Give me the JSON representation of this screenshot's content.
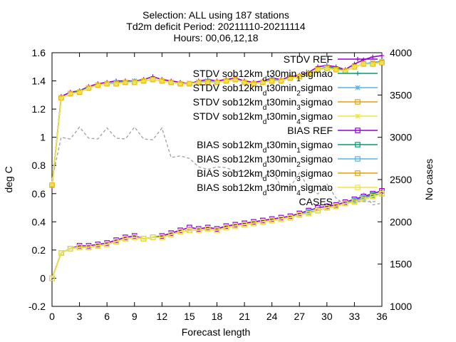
{
  "chart_data": {
    "type": "line",
    "title_lines": [
      "Selection: ALL using 187 stations",
      "Td2m deficit Period: 20211110-20211114",
      "Hours: 00,06,12,18"
    ],
    "xlabel": "Forecast length",
    "ylabel": "deg C",
    "y2label": "No cases",
    "xlim": [
      0,
      36
    ],
    "ylim": [
      -0.2,
      1.6
    ],
    "y2lim": [
      1000,
      4000
    ],
    "xticks": [
      0,
      3,
      6,
      9,
      12,
      15,
      18,
      21,
      24,
      27,
      30,
      33,
      36
    ],
    "yticks": [
      -0.2,
      0,
      0.2,
      0.4,
      0.6,
      0.8,
      1,
      1.2,
      1.4,
      1.6
    ],
    "y2ticks": [
      1000,
      1500,
      2000,
      2500,
      3000,
      3500,
      4000
    ],
    "legend_position": "top-right",
    "x": [
      0,
      1,
      2,
      3,
      4,
      5,
      6,
      7,
      8,
      9,
      10,
      11,
      12,
      13,
      14,
      15,
      16,
      17,
      18,
      19,
      20,
      21,
      22,
      23,
      24,
      25,
      26,
      27,
      28,
      29,
      30,
      31,
      32,
      33,
      34,
      35,
      36
    ],
    "series": [
      {
        "name": "STDV REF",
        "color": "#9400d3",
        "axis": "y1",
        "marker": "plus",
        "values": [
          0.65,
          1.29,
          1.32,
          1.33,
          1.36,
          1.38,
          1.39,
          1.4,
          1.4,
          1.4,
          1.41,
          1.43,
          1.41,
          1.4,
          1.39,
          1.38,
          1.4,
          1.41,
          1.4,
          1.41,
          1.42,
          1.4,
          1.39,
          1.4,
          1.42,
          1.41,
          1.43,
          1.44,
          1.46,
          1.5,
          1.51,
          1.5,
          1.48,
          1.52,
          1.55,
          1.57,
          1.58
        ]
      },
      {
        "name": "STDV sob12km_d t30min_1 sigmao",
        "color": "#009e73",
        "axis": "y1",
        "marker": "plus",
        "values": [
          0.66,
          1.28,
          1.31,
          1.33,
          1.35,
          1.37,
          1.38,
          1.39,
          1.39,
          1.4,
          1.4,
          1.41,
          1.4,
          1.39,
          1.38,
          1.38,
          1.39,
          1.4,
          1.39,
          1.4,
          1.41,
          1.39,
          1.38,
          1.39,
          1.41,
          1.4,
          1.42,
          1.43,
          1.45,
          1.48,
          1.5,
          1.49,
          1.47,
          1.5,
          1.52,
          1.53,
          1.54
        ]
      },
      {
        "name": "STDV sob12km_d t30min_2 sigmao",
        "color": "#56b4e9",
        "axis": "y1",
        "marker": "star",
        "values": [
          0.66,
          1.28,
          1.31,
          1.32,
          1.35,
          1.37,
          1.38,
          1.39,
          1.39,
          1.4,
          1.4,
          1.41,
          1.4,
          1.39,
          1.38,
          1.38,
          1.39,
          1.4,
          1.39,
          1.4,
          1.41,
          1.39,
          1.38,
          1.39,
          1.41,
          1.4,
          1.42,
          1.43,
          1.45,
          1.48,
          1.5,
          1.48,
          1.47,
          1.5,
          1.52,
          1.53,
          1.54
        ]
      },
      {
        "name": "STDV sob12km_d t30min_3 sigmao",
        "color": "#e69f00",
        "axis": "y1",
        "marker": "box",
        "values": [
          0.66,
          1.28,
          1.31,
          1.32,
          1.35,
          1.37,
          1.38,
          1.38,
          1.39,
          1.39,
          1.4,
          1.41,
          1.4,
          1.39,
          1.38,
          1.38,
          1.39,
          1.39,
          1.39,
          1.4,
          1.41,
          1.39,
          1.38,
          1.39,
          1.4,
          1.4,
          1.42,
          1.43,
          1.45,
          1.48,
          1.49,
          1.48,
          1.47,
          1.5,
          1.52,
          1.52,
          1.53
        ]
      },
      {
        "name": "STDV sob12km_d t30min_4 sigmao",
        "color": "#f0e442",
        "axis": "y1",
        "marker": "star",
        "values": [
          0.66,
          1.28,
          1.31,
          1.32,
          1.35,
          1.37,
          1.38,
          1.38,
          1.39,
          1.39,
          1.4,
          1.41,
          1.4,
          1.39,
          1.38,
          1.38,
          1.39,
          1.39,
          1.39,
          1.4,
          1.41,
          1.39,
          1.38,
          1.39,
          1.4,
          1.4,
          1.42,
          1.43,
          1.45,
          1.48,
          1.49,
          1.48,
          1.47,
          1.5,
          1.52,
          1.52,
          1.53
        ]
      },
      {
        "name": "BIAS REF",
        "color": "#9400d3",
        "axis": "y1",
        "marker": "box",
        "values": [
          0.0,
          0.18,
          0.21,
          0.23,
          0.23,
          0.24,
          0.25,
          0.27,
          0.29,
          0.3,
          0.28,
          0.29,
          0.3,
          0.32,
          0.34,
          0.36,
          0.35,
          0.36,
          0.35,
          0.37,
          0.38,
          0.39,
          0.4,
          0.41,
          0.42,
          0.43,
          0.44,
          0.46,
          0.48,
          0.5,
          0.51,
          0.52,
          0.54,
          0.56,
          0.58,
          0.6,
          0.62
        ]
      },
      {
        "name": "BIAS sob12km_d t30min_1 sigmao",
        "color": "#009e73",
        "axis": "y1",
        "marker": "box",
        "values": [
          0.0,
          0.18,
          0.21,
          0.22,
          0.22,
          0.23,
          0.24,
          0.26,
          0.28,
          0.29,
          0.28,
          0.29,
          0.29,
          0.31,
          0.33,
          0.34,
          0.34,
          0.35,
          0.34,
          0.36,
          0.37,
          0.38,
          0.39,
          0.4,
          0.41,
          0.42,
          0.43,
          0.45,
          0.47,
          0.48,
          0.5,
          0.51,
          0.53,
          0.55,
          0.57,
          0.59,
          0.6
        ]
      },
      {
        "name": "BIAS sob12km_d t30min_2 sigmao",
        "color": "#56b4e9",
        "axis": "y1",
        "marker": "box",
        "values": [
          0.0,
          0.18,
          0.21,
          0.22,
          0.22,
          0.23,
          0.24,
          0.26,
          0.28,
          0.29,
          0.28,
          0.29,
          0.29,
          0.31,
          0.33,
          0.34,
          0.34,
          0.35,
          0.34,
          0.36,
          0.37,
          0.38,
          0.39,
          0.4,
          0.41,
          0.42,
          0.43,
          0.45,
          0.47,
          0.48,
          0.5,
          0.51,
          0.53,
          0.55,
          0.57,
          0.58,
          0.6
        ]
      },
      {
        "name": "BIAS sob12km_d t30min_3 sigmao",
        "color": "#e69f00",
        "axis": "y1",
        "marker": "box",
        "values": [
          0.0,
          0.18,
          0.21,
          0.22,
          0.22,
          0.23,
          0.24,
          0.26,
          0.28,
          0.29,
          0.28,
          0.29,
          0.29,
          0.31,
          0.33,
          0.34,
          0.34,
          0.35,
          0.34,
          0.36,
          0.37,
          0.38,
          0.39,
          0.4,
          0.41,
          0.42,
          0.43,
          0.45,
          0.46,
          0.48,
          0.5,
          0.51,
          0.53,
          0.54,
          0.56,
          0.58,
          0.6
        ]
      },
      {
        "name": "BIAS sob12km_d t30min_4 sigmao",
        "color": "#f0e442",
        "axis": "y1",
        "marker": "box",
        "values": [
          0.0,
          0.18,
          0.21,
          0.22,
          0.22,
          0.23,
          0.24,
          0.26,
          0.28,
          0.29,
          0.28,
          0.29,
          0.29,
          0.31,
          0.33,
          0.34,
          0.34,
          0.35,
          0.34,
          0.36,
          0.37,
          0.38,
          0.39,
          0.4,
          0.41,
          0.42,
          0.43,
          0.45,
          0.46,
          0.48,
          0.5,
          0.51,
          0.53,
          0.54,
          0.56,
          0.58,
          0.6
        ]
      },
      {
        "name": "CASES",
        "color": "#a0a0a0",
        "axis": "y2",
        "dashed": true,
        "values": [
          2500,
          3000,
          2980,
          3120,
          2990,
          2980,
          3110,
          2990,
          2980,
          3120,
          2980,
          2970,
          3110,
          2760,
          2780,
          2750,
          2650,
          2620,
          2650,
          2640,
          2600,
          2590,
          2560,
          2520,
          2600,
          2420,
          2410,
          2580,
          2400,
          2330,
          2450,
          2280,
          2200,
          2260,
          2340,
          2200,
          2220
        ]
      }
    ]
  }
}
